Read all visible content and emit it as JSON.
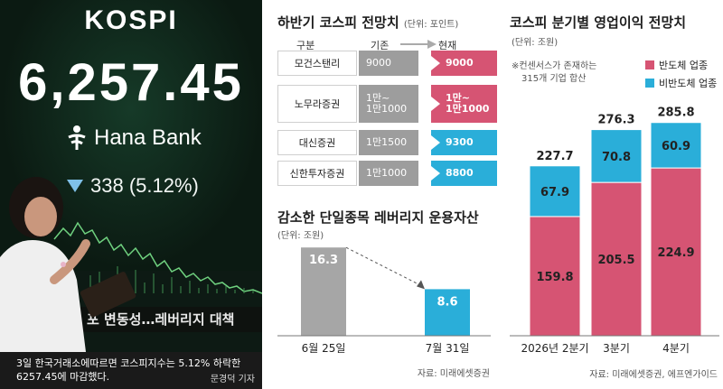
{
  "colors": {
    "accent_pink": "#d65473",
    "accent_blue": "#2aaed9",
    "gray_bar": "#a6a6a6",
    "previous_cell": "#9d9d9d"
  },
  "photo": {
    "board_title": "KOSPI",
    "board_value": "6,257.45",
    "sponsor": "Hana Bank",
    "change_text": "338 (5.12%)",
    "ticker_text": "포 변동성…레버리지 대책",
    "caption_line1": "3일 한국거래소에따르면 코스피지수는 5.12% 하락한",
    "caption_line2": "6257.45에 마감했다.",
    "credit": "문경덕 기자"
  },
  "forecast": {
    "title": "하반기 코스피 전망치",
    "unit": "(단위: 포인트)",
    "header_firm": "구분",
    "header_prev": "기존",
    "header_curr": "현재",
    "rows": [
      {
        "firm": "모건스탠리",
        "prev": "9000",
        "curr": "9000",
        "curr_color": "pink"
      },
      {
        "firm": "노무라증권",
        "prev": "1만~\n1만1000",
        "curr": "1만~\n1만1000",
        "curr_color": "pink"
      },
      {
        "firm": "대신증권",
        "prev": "1만1500",
        "curr": "9300",
        "curr_color": "blue"
      },
      {
        "firm": "신한투자증권",
        "prev": "1만1000",
        "curr": "8800",
        "curr_color": "blue"
      }
    ]
  },
  "chart_data": [
    {
      "type": "bar",
      "title": "감소한 단일종목 레버리지 운용자산",
      "unit": "(단위: 조원)",
      "categories": [
        "6월 25일",
        "7월 31일"
      ],
      "values": [
        16.3,
        8.6
      ],
      "source": "자료: 미래에셋증권"
    },
    {
      "type": "bar",
      "stacked": true,
      "title": "코스피 분기별 영업이익 전망치",
      "unit": "(단위: 조원)",
      "note_line1": "※컨센서스가 존재하는",
      "note_line2": "315개 기업 합산",
      "categories": [
        "2026년 2분기",
        "3분기",
        "4분기"
      ],
      "series": [
        {
          "name": "반도체 업종",
          "values": [
            159.8,
            205.5,
            224.9
          ]
        },
        {
          "name": "비반도체 업종",
          "values": [
            67.9,
            70.8,
            60.9
          ]
        }
      ],
      "totals": [
        227.7,
        276.3,
        285.8
      ],
      "legend_position": "top-right",
      "source": "자료: 미래에셋증권, 에프엔가이드"
    }
  ]
}
